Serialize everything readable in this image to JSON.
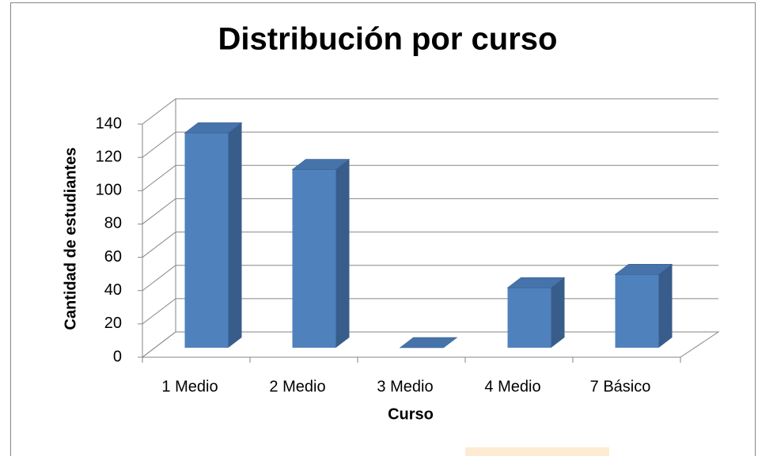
{
  "chart_data": {
    "type": "bar3d",
    "title": "Distribución por curso",
    "categories": [
      "1 Medio",
      "2 Medio",
      "3 Medio",
      "4 Medio",
      "7 Básico"
    ],
    "values": [
      129,
      107,
      0,
      36,
      44
    ],
    "color": "#4f81bd",
    "ylim": [
      0,
      140
    ],
    "yticks": [
      0,
      20,
      40,
      60,
      80,
      100,
      120,
      140
    ],
    "xlabel": "Curso",
    "ylabel": "Cantidad de estudiantes",
    "grid": true
  }
}
